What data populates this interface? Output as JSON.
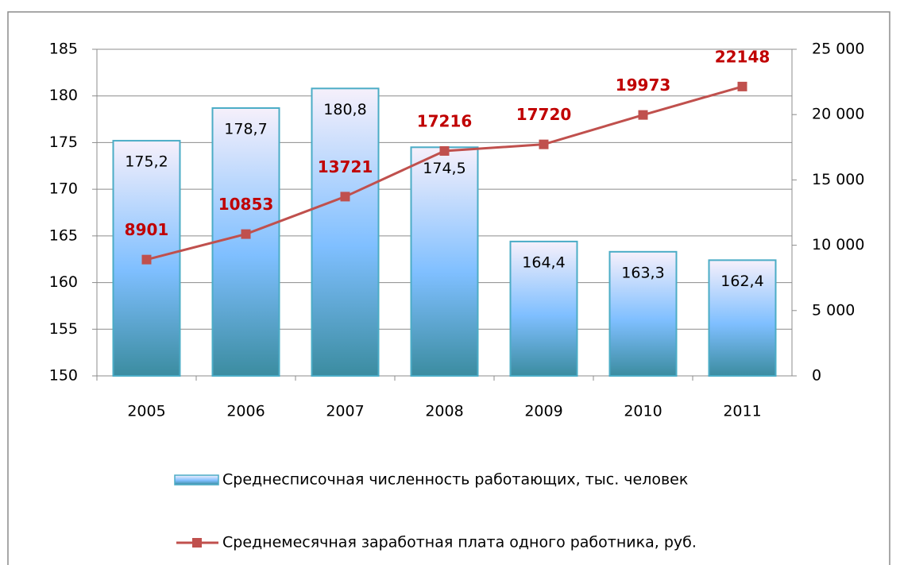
{
  "chart_data": {
    "type": "combo",
    "categories": [
      "2005",
      "2006",
      "2007",
      "2008",
      "2009",
      "2010",
      "2011"
    ],
    "series": [
      {
        "name": "Среднесписочная численность работающих, тыс. человек",
        "type": "bar",
        "axis": "y",
        "color": "#4bacc6",
        "values": [
          175.2,
          178.7,
          180.8,
          174.5,
          164.4,
          163.3,
          162.4
        ],
        "value_labels": [
          "175,2",
          "178,7",
          "180,8",
          "174,5",
          "164,4",
          "163,3",
          "162,4"
        ]
      },
      {
        "name": "Среднемесячная заработная плата одного работника, руб.",
        "type": "line",
        "axis": "y2",
        "color": "#c0504d",
        "values": [
          8901,
          10853,
          13721,
          17216,
          17720,
          19973,
          22148
        ]
      }
    ],
    "ylim": [
      150,
      185
    ],
    "yticks": [
      150,
      155,
      160,
      165,
      170,
      175,
      180,
      185
    ],
    "y2lim": [
      0,
      25000
    ],
    "y2ticks": [
      0,
      {
        "value": 5000,
        "label": "5 000"
      },
      {
        "value": 10000,
        "label": "10 000"
      },
      {
        "value": 15000,
        "label": "15 000"
      },
      {
        "value": 20000,
        "label": "20 000"
      },
      {
        "value": 25000,
        "label": "25 000"
      }
    ],
    "grid": true
  }
}
